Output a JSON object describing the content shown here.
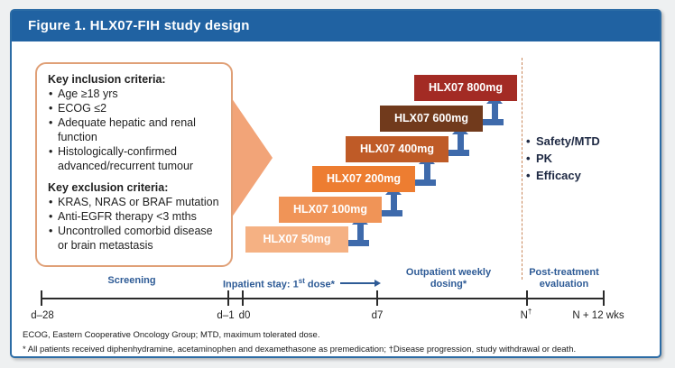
{
  "figure": {
    "title": "Figure 1. HLX07-FIH study design"
  },
  "criteria_box": {
    "inclusion": {
      "heading": "Key inclusion criteria:",
      "items": [
        "Age ≥18 yrs",
        "ECOG ≤2",
        "Adequate hepatic and renal function",
        "Histologically-confirmed advanced/recurrent tumour"
      ]
    },
    "exclusion": {
      "heading": "Key exclusion criteria:",
      "items": [
        "KRAS, NRAS or BRAF mutation",
        "Anti-EGFR therapy <3 mths",
        "Uncontrolled comorbid disease or brain metastasis"
      ]
    }
  },
  "dose_escalation": {
    "steps": [
      {
        "label": "HLX07 50mg",
        "color": "#f5b183"
      },
      {
        "label": "HLX07 100mg",
        "color": "#f09457"
      },
      {
        "label": "HLX07 200mg",
        "color": "#ed7d31"
      },
      {
        "label": "HLX07 400mg",
        "color": "#bf5b27"
      },
      {
        "label": "HLX07 600mg",
        "color": "#713a1c"
      },
      {
        "label": "HLX07 800mg",
        "color": "#a32b24"
      }
    ]
  },
  "endpoints": {
    "items": [
      "Safety/MTD",
      "PK",
      "Efficacy"
    ]
  },
  "timeline": {
    "phases": {
      "screening": {
        "label": "Screening"
      },
      "inpatient": {
        "label_pre": "Inpatient stay: 1",
        "label_sup": "st",
        "label_post": " dose*"
      },
      "outpatient": {
        "line1": "Outpatient weekly",
        "line2": "dosing*"
      },
      "posttreatment": {
        "line1": "Post-treatment",
        "line2": "evaluation"
      }
    },
    "ticks": [
      {
        "label": "d–28"
      },
      {
        "label": "d–1"
      },
      {
        "label": "d0"
      },
      {
        "label": "d7"
      },
      {
        "label": "N",
        "sup": "†"
      },
      {
        "label": "N + 12 wks"
      }
    ]
  },
  "footnotes": [
    "ECOG, Eastern Cooperative Oncology Group; MTD, maximum tolerated dose.",
    "* All patients received diphenhydramine, acetaminophen and dexamethasone as premedication; †Disease progression, study withdrawal or death."
  ],
  "colors": {
    "header_bg": "#2062a2",
    "figure_border": "#2c6ca5",
    "criteria_border": "#e0a077",
    "funnel_arrow": "#f2a478",
    "escalation_arrow": "#3e6aab",
    "separator_dashed": "#c9875a",
    "phase_label_blue": "#2e5b96",
    "endpoint_text": "#1f2a44",
    "timeline_line": "#2b2b2b"
  }
}
